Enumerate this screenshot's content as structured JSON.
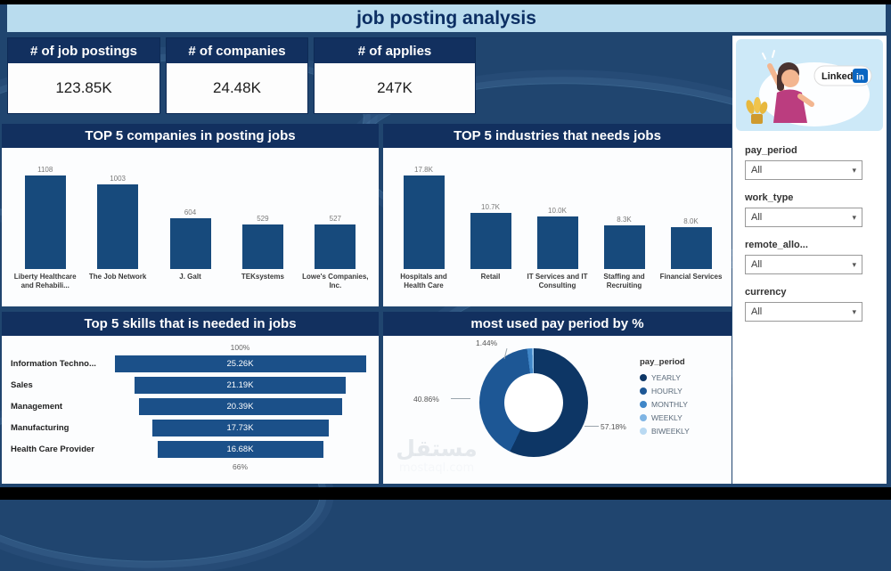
{
  "title": "job posting analysis",
  "kpis": [
    {
      "label": "# of job postings",
      "value": "123.85K"
    },
    {
      "label": "# of companies",
      "value": "24.48K"
    },
    {
      "label": "# of applies",
      "value": "247K"
    }
  ],
  "filters": [
    {
      "label": "pay_period",
      "value": "All"
    },
    {
      "label": "work_type",
      "value": "All"
    },
    {
      "label": "remote_allo...",
      "value": "All"
    },
    {
      "label": "currency",
      "value": "All"
    }
  ],
  "linkedin": {
    "brand": "Linked",
    "brand_suffix": "in"
  },
  "watermark": {
    "line1": "مستقل",
    "line2": "mostaql.com"
  },
  "colors": {
    "background": "#20456f",
    "band_navy": "#12305f",
    "header_strip": "#b9dcee",
    "bar_blue": "#174a7c",
    "funnel_blue": "#1b5089",
    "linkedin_blue": "#0a66c2"
  },
  "chart_data": [
    {
      "name": "top5_companies",
      "type": "bar",
      "title": "TOP 5 companies in posting jobs",
      "categories": [
        "Liberty Healthcare and Rehabili...",
        "The Job Network",
        "J. Galt",
        "TEKsystems",
        "Lowe's Companies, Inc."
      ],
      "values": [
        1108,
        1003,
        604,
        529,
        527
      ],
      "value_labels": [
        "1108",
        "1003",
        "604",
        "529",
        "527"
      ],
      "xlabel": "",
      "ylabel": "",
      "ylim": [
        0,
        1200
      ],
      "grid": false,
      "legend": false
    },
    {
      "name": "top5_industries",
      "type": "bar",
      "title": "TOP 5 industries that needs jobs",
      "categories": [
        "Hospitals and Health Care",
        "Retail",
        "IT Services and IT Consulting",
        "Staffing and Recruiting",
        "Financial Services"
      ],
      "values": [
        17800,
        10700,
        10000,
        8300,
        8000
      ],
      "value_labels": [
        "17.8K",
        "10.7K",
        "10.0K",
        "8.3K",
        "8.0K"
      ],
      "xlabel": "",
      "ylabel": "",
      "ylim": [
        0,
        19000
      ],
      "grid": false,
      "legend": false
    },
    {
      "name": "top5_skills",
      "type": "bar",
      "subtype": "funnel",
      "title": "Top 5 skills that is needed in jobs",
      "categories": [
        "Information Techno...",
        "Sales",
        "Management",
        "Manufacturing",
        "Health Care Provider"
      ],
      "values": [
        25260,
        21190,
        20390,
        17730,
        16680
      ],
      "value_labels": [
        "25.26K",
        "21.19K",
        "20.39K",
        "17.73K",
        "16.68K"
      ],
      "top_percent": "100%",
      "bottom_percent": "66%"
    },
    {
      "name": "pay_period_donut",
      "type": "pie",
      "title": "most used pay period by %",
      "legend_title": "pay_period",
      "legend_position": "right",
      "slices": [
        {
          "label": "YEARLY",
          "percent": 57.18,
          "display": "57.18%",
          "color": "#0d3665"
        },
        {
          "label": "HOURLY",
          "percent": 40.86,
          "display": "40.86%",
          "color": "#1d5795"
        },
        {
          "label": "MONTHLY",
          "percent": 1.44,
          "display": "1.44%",
          "color": "#3f86c8"
        },
        {
          "label": "WEEKLY",
          "percent": 0.35,
          "display": "",
          "color": "#7fb5e4"
        },
        {
          "label": "BIWEEKLY",
          "percent": 0.17,
          "display": "",
          "color": "#b9d9f2"
        }
      ]
    }
  ]
}
